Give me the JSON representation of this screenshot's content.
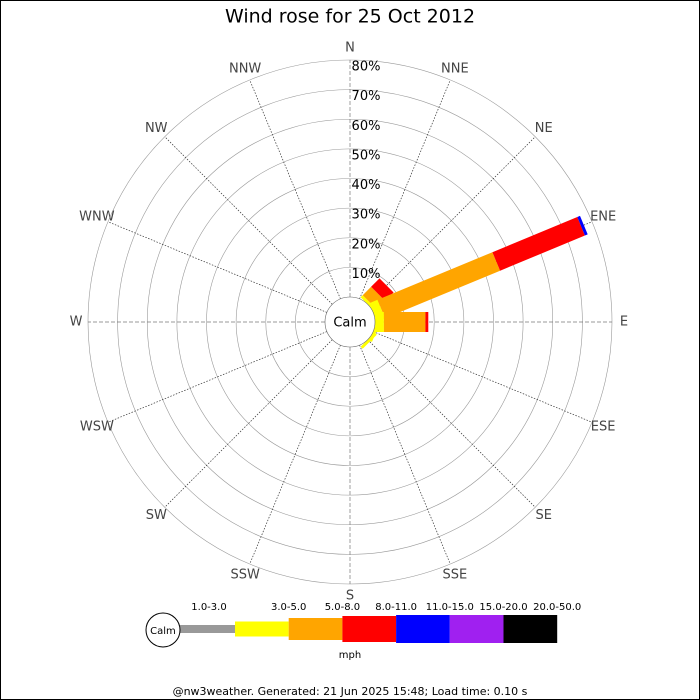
{
  "chart_data": {
    "type": "wind-rose",
    "title": "Wind rose for 25 Oct 2012",
    "categories": [
      "N",
      "NNE",
      "NE",
      "ENE",
      "E",
      "ESE",
      "SE",
      "SSE",
      "S",
      "SSW",
      "SW",
      "WSW",
      "W",
      "WNW",
      "NW",
      "NNW"
    ],
    "center_label": "Calm",
    "series": [
      {
        "name": "1.0-3.0",
        "color": "#999999",
        "values": [
          0,
          0,
          0,
          0,
          0,
          0,
          0,
          0,
          0,
          0,
          0,
          0,
          0,
          0,
          0,
          0
        ]
      },
      {
        "name": "3.0-5.0",
        "color": "#ffff00",
        "values": [
          0,
          0,
          1,
          3,
          3,
          1,
          1,
          0,
          0,
          0,
          0,
          0,
          0,
          0,
          0,
          0
        ]
      },
      {
        "name": "5.0-8.0",
        "color": "#ffa500",
        "values": [
          0,
          0,
          4,
          42,
          14,
          0,
          0,
          0,
          0,
          0,
          0,
          0,
          0,
          0,
          0,
          0
        ]
      },
      {
        "name": "8.0-11.0",
        "color": "#ff0000",
        "values": [
          0,
          0,
          4,
          31,
          1,
          0,
          0,
          0,
          0,
          0,
          0,
          0,
          0,
          0,
          0,
          0
        ]
      },
      {
        "name": "11.0-15.0",
        "color": "#0000ff",
        "values": [
          0,
          0,
          0,
          1,
          0,
          0,
          0,
          0,
          0,
          0,
          0,
          0,
          0,
          0,
          0,
          0
        ]
      },
      {
        "name": "15.0-20.0",
        "color": "#a020f0",
        "values": [
          0,
          0,
          0,
          0,
          0,
          0,
          0,
          0,
          0,
          0,
          0,
          0,
          0,
          0,
          0,
          0
        ]
      },
      {
        "name": "20.0-50.0",
        "color": "#000000",
        "values": [
          0,
          0,
          0,
          0,
          0,
          0,
          0,
          0,
          0,
          0,
          0,
          0,
          0,
          0,
          0,
          0
        ]
      }
    ],
    "rlim": [
      0,
      80
    ],
    "rticks": [
      {
        "value": 10,
        "label": "10%"
      },
      {
        "value": 20,
        "label": "20%"
      },
      {
        "value": 30,
        "label": "30%"
      },
      {
        "value": 40,
        "label": "40%"
      },
      {
        "value": 50,
        "label": "50%"
      },
      {
        "value": 60,
        "label": "60%"
      },
      {
        "value": 70,
        "label": "70%"
      },
      {
        "value": 80,
        "label": "80%"
      }
    ],
    "legend_unit": "mph",
    "footer": "@nw3weather. Generated: 21 Jun 2025 15:48; Load time: 0.10 s"
  }
}
